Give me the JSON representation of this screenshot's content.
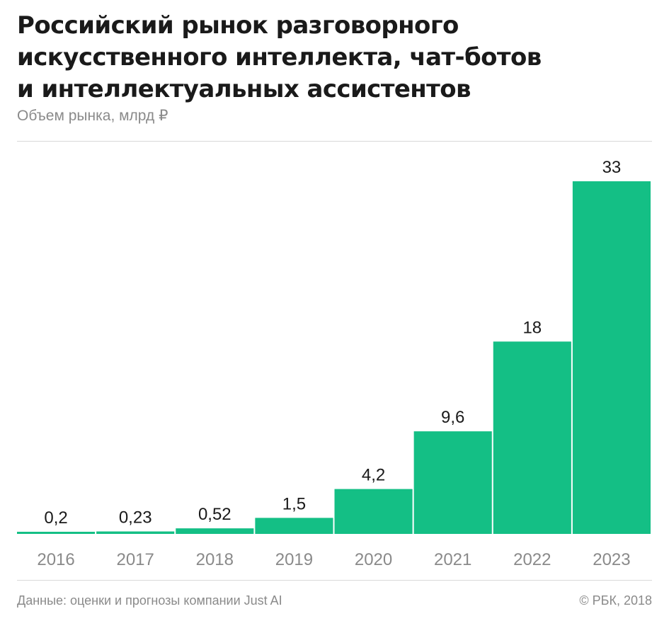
{
  "header": {
    "title_lines": [
      "Российский рынок разговорного",
      "искусственного интеллекта, чат-ботов",
      "и интеллектуальных ассистентов"
    ],
    "subtitle": "Объем рынка, млрд ₽"
  },
  "footer": {
    "source": "Данные: оценки и прогнозы компании Just AI",
    "copyright": "© РБК, 2018"
  },
  "colors": {
    "bar": "#14bf85",
    "text": "#1a1a1a",
    "muted": "#8a8a8a"
  },
  "chart_data": {
    "type": "bar",
    "title": "Российский рынок разговорного искусственного интеллекта, чат-ботов и интеллектуальных ассистентов",
    "subtitle": "Объем рынка, млрд ₽",
    "categories": [
      "2016",
      "2017",
      "2018",
      "2019",
      "2020",
      "2021",
      "2022",
      "2023"
    ],
    "values": [
      0.2,
      0.23,
      0.52,
      1.5,
      4.2,
      9.6,
      18,
      33
    ],
    "value_labels": [
      "0,2",
      "0,23",
      "0,52",
      "1,5",
      "4,2",
      "9,6",
      "18",
      "33"
    ],
    "ylim": [
      0,
      33
    ],
    "grid": false,
    "legend": "none"
  }
}
